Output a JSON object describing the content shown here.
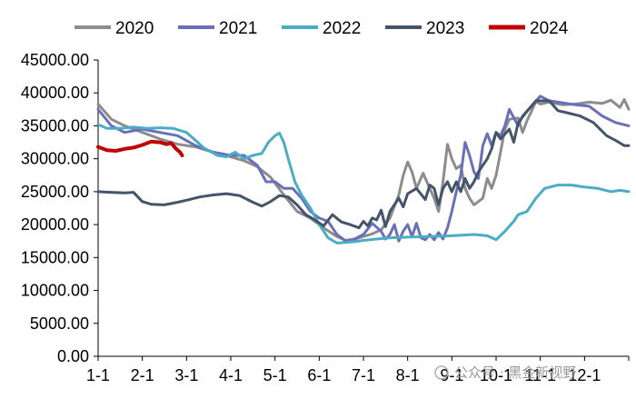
{
  "chart_data": {
    "type": "line",
    "title": "",
    "xlabel": "",
    "ylabel": "",
    "x_tick_labels": [
      "1-1",
      "2-1",
      "3-1",
      "4-1",
      "5-1",
      "6-1",
      "7-1",
      "8-1",
      "9-1",
      "10-1",
      "11-1",
      "12-1"
    ],
    "y_tick_labels": [
      "0.00",
      "5000.00",
      "10000.00",
      "15000.00",
      "20000.00",
      "25000.00",
      "30000.00",
      "35000.00",
      "40000.00",
      "45000.00"
    ],
    "ylim": [
      0,
      45000
    ],
    "xlim": [
      1,
      13
    ],
    "grid": false,
    "legend_position": "top",
    "series": [
      {
        "name": "2020",
        "color": "#8c8c8c",
        "width": 3,
        "points": [
          [
            1.0,
            38300
          ],
          [
            1.3,
            36000
          ],
          [
            1.6,
            35000
          ],
          [
            2.0,
            34000
          ],
          [
            2.4,
            33000
          ],
          [
            2.8,
            32200
          ],
          [
            3.2,
            31800
          ],
          [
            3.6,
            31000
          ],
          [
            4.0,
            30300
          ],
          [
            4.3,
            29700
          ],
          [
            4.6,
            28800
          ],
          [
            4.9,
            27200
          ],
          [
            5.2,
            24500
          ],
          [
            5.5,
            22000
          ],
          [
            5.8,
            21000
          ],
          [
            6.1,
            19500
          ],
          [
            6.4,
            18200
          ],
          [
            6.6,
            17600
          ],
          [
            6.8,
            17800
          ],
          [
            7.0,
            18200
          ],
          [
            7.2,
            18600
          ],
          [
            7.4,
            19200
          ],
          [
            7.6,
            21000
          ],
          [
            7.8,
            24500
          ],
          [
            7.9,
            27500
          ],
          [
            8.0,
            29500
          ],
          [
            8.1,
            28000
          ],
          [
            8.2,
            25500
          ],
          [
            8.35,
            27800
          ],
          [
            8.5,
            25500
          ],
          [
            8.6,
            24000
          ],
          [
            8.7,
            22000
          ],
          [
            8.8,
            26500
          ],
          [
            8.9,
            32200
          ],
          [
            9.0,
            30000
          ],
          [
            9.1,
            28500
          ],
          [
            9.2,
            29000
          ],
          [
            9.3,
            25500
          ],
          [
            9.4,
            24000
          ],
          [
            9.5,
            23000
          ],
          [
            9.7,
            24000
          ],
          [
            9.8,
            27000
          ],
          [
            9.9,
            25500
          ],
          [
            10.0,
            27500
          ],
          [
            10.1,
            31000
          ],
          [
            10.2,
            34500
          ],
          [
            10.3,
            36000
          ],
          [
            10.5,
            36200
          ],
          [
            10.6,
            34000
          ],
          [
            10.7,
            35800
          ],
          [
            10.8,
            37200
          ],
          [
            10.9,
            38700
          ],
          [
            11.0,
            38300
          ],
          [
            11.2,
            38600
          ],
          [
            11.5,
            38200
          ],
          [
            11.8,
            38300
          ],
          [
            12.1,
            38600
          ],
          [
            12.4,
            38400
          ],
          [
            12.6,
            38900
          ],
          [
            12.8,
            37800
          ],
          [
            12.9,
            39000
          ],
          [
            13.0,
            37500
          ]
        ]
      },
      {
        "name": "2021",
        "color": "#6a70b8",
        "width": 3,
        "points": [
          [
            1.0,
            37500
          ],
          [
            1.3,
            35000
          ],
          [
            1.6,
            34000
          ],
          [
            2.0,
            34500
          ],
          [
            2.4,
            34000
          ],
          [
            2.8,
            33500
          ],
          [
            3.2,
            32000
          ],
          [
            3.6,
            31000
          ],
          [
            4.0,
            30500
          ],
          [
            4.3,
            30500
          ],
          [
            4.6,
            29000
          ],
          [
            4.8,
            26500
          ],
          [
            5.0,
            26500
          ],
          [
            5.2,
            25500
          ],
          [
            5.4,
            25500
          ],
          [
            5.6,
            24000
          ],
          [
            5.8,
            22000
          ],
          [
            6.0,
            21000
          ],
          [
            6.2,
            20500
          ],
          [
            6.4,
            18500
          ],
          [
            6.6,
            17500
          ],
          [
            6.8,
            17800
          ],
          [
            7.0,
            18500
          ],
          [
            7.2,
            20200
          ],
          [
            7.4,
            19000
          ],
          [
            7.5,
            17800
          ],
          [
            7.6,
            18500
          ],
          [
            7.7,
            20000
          ],
          [
            7.8,
            17500
          ],
          [
            7.9,
            19000
          ],
          [
            8.0,
            20000
          ],
          [
            8.1,
            18200
          ],
          [
            8.2,
            20200
          ],
          [
            8.3,
            18000
          ],
          [
            8.4,
            17700
          ],
          [
            8.5,
            18500
          ],
          [
            8.6,
            17700
          ],
          [
            8.7,
            18800
          ],
          [
            8.8,
            17800
          ],
          [
            8.9,
            19500
          ],
          [
            9.0,
            22000
          ],
          [
            9.1,
            25000
          ],
          [
            9.2,
            27500
          ],
          [
            9.3,
            32500
          ],
          [
            9.4,
            30500
          ],
          [
            9.5,
            28000
          ],
          [
            9.6,
            27000
          ],
          [
            9.7,
            32000
          ],
          [
            9.8,
            33800
          ],
          [
            9.9,
            32000
          ],
          [
            10.0,
            34000
          ],
          [
            10.1,
            33500
          ],
          [
            10.2,
            35000
          ],
          [
            10.3,
            37500
          ],
          [
            10.5,
            35000
          ],
          [
            10.6,
            36500
          ],
          [
            10.8,
            38000
          ],
          [
            11.0,
            39500
          ],
          [
            11.2,
            38800
          ],
          [
            11.5,
            38500
          ],
          [
            11.8,
            38200
          ],
          [
            12.1,
            38000
          ],
          [
            12.4,
            36500
          ],
          [
            12.7,
            35500
          ],
          [
            13.0,
            35000
          ]
        ]
      },
      {
        "name": "2022",
        "color": "#4bacc6",
        "width": 3,
        "points": [
          [
            1.0,
            35200
          ],
          [
            1.2,
            34600
          ],
          [
            1.5,
            34600
          ],
          [
            1.8,
            34800
          ],
          [
            2.1,
            34600
          ],
          [
            2.4,
            34700
          ],
          [
            2.7,
            34600
          ],
          [
            3.0,
            34000
          ],
          [
            3.2,
            32800
          ],
          [
            3.4,
            31600
          ],
          [
            3.7,
            30500
          ],
          [
            3.9,
            30300
          ],
          [
            4.1,
            31000
          ],
          [
            4.3,
            30000
          ],
          [
            4.5,
            30500
          ],
          [
            4.7,
            30800
          ],
          [
            4.85,
            32500
          ],
          [
            5.0,
            33500
          ],
          [
            5.1,
            33900
          ],
          [
            5.2,
            32500
          ],
          [
            5.3,
            30000
          ],
          [
            5.45,
            26500
          ],
          [
            5.6,
            24500
          ],
          [
            5.8,
            22500
          ],
          [
            6.0,
            20000
          ],
          [
            6.2,
            18000
          ],
          [
            6.4,
            17200
          ],
          [
            6.6,
            17300
          ],
          [
            6.8,
            17400
          ],
          [
            7.0,
            17600
          ],
          [
            7.3,
            17800
          ],
          [
            7.6,
            18000
          ],
          [
            8.0,
            18100
          ],
          [
            8.5,
            18200
          ],
          [
            9.0,
            18300
          ],
          [
            9.5,
            18500
          ],
          [
            9.8,
            18300
          ],
          [
            10.0,
            17700
          ],
          [
            10.2,
            19000
          ],
          [
            10.4,
            20500
          ],
          [
            10.5,
            21500
          ],
          [
            10.7,
            22000
          ],
          [
            10.9,
            24000
          ],
          [
            11.1,
            25500
          ],
          [
            11.4,
            26000
          ],
          [
            11.7,
            26000
          ],
          [
            12.0,
            25700
          ],
          [
            12.3,
            25500
          ],
          [
            12.6,
            25000
          ],
          [
            12.8,
            25200
          ],
          [
            13.0,
            25000
          ]
        ]
      },
      {
        "name": "2023",
        "color": "#44546a",
        "width": 3,
        "points": [
          [
            1.0,
            25000
          ],
          [
            1.3,
            24900
          ],
          [
            1.6,
            24800
          ],
          [
            1.8,
            24900
          ],
          [
            2.0,
            23500
          ],
          [
            2.2,
            23100
          ],
          [
            2.5,
            23000
          ],
          [
            2.8,
            23400
          ],
          [
            3.0,
            23700
          ],
          [
            3.3,
            24200
          ],
          [
            3.6,
            24500
          ],
          [
            3.9,
            24700
          ],
          [
            4.2,
            24400
          ],
          [
            4.5,
            23400
          ],
          [
            4.7,
            22800
          ],
          [
            4.9,
            23500
          ],
          [
            5.1,
            24400
          ],
          [
            5.3,
            24200
          ],
          [
            5.5,
            23000
          ],
          [
            5.7,
            21500
          ],
          [
            5.9,
            20700
          ],
          [
            6.1,
            19800
          ],
          [
            6.3,
            21500
          ],
          [
            6.5,
            20400
          ],
          [
            6.7,
            20000
          ],
          [
            6.9,
            19500
          ],
          [
            7.0,
            20500
          ],
          [
            7.1,
            19800
          ],
          [
            7.2,
            21000
          ],
          [
            7.3,
            20700
          ],
          [
            7.4,
            22200
          ],
          [
            7.5,
            19700
          ],
          [
            7.6,
            22000
          ],
          [
            7.8,
            24000
          ],
          [
            7.9,
            22700
          ],
          [
            8.0,
            24700
          ],
          [
            8.2,
            25500
          ],
          [
            8.4,
            23800
          ],
          [
            8.5,
            26000
          ],
          [
            8.6,
            25500
          ],
          [
            8.7,
            23000
          ],
          [
            8.8,
            25500
          ],
          [
            8.9,
            26500
          ],
          [
            9.0,
            25000
          ],
          [
            9.1,
            26500
          ],
          [
            9.2,
            25000
          ],
          [
            9.3,
            27000
          ],
          [
            9.4,
            25500
          ],
          [
            9.5,
            26500
          ],
          [
            9.6,
            28000
          ],
          [
            9.8,
            30000
          ],
          [
            9.9,
            31500
          ],
          [
            10.0,
            34000
          ],
          [
            10.1,
            33000
          ],
          [
            10.3,
            34500
          ],
          [
            10.4,
            32500
          ],
          [
            10.5,
            35500
          ],
          [
            10.7,
            37200
          ],
          [
            10.9,
            38800
          ],
          [
            11.2,
            38800
          ],
          [
            11.4,
            37300
          ],
          [
            11.6,
            37000
          ],
          [
            11.9,
            36500
          ],
          [
            12.2,
            35500
          ],
          [
            12.5,
            33500
          ],
          [
            12.7,
            32800
          ],
          [
            12.9,
            32000
          ],
          [
            13.0,
            32000
          ]
        ]
      },
      {
        "name": "2024",
        "color": "#c00000",
        "width": 4,
        "points": [
          [
            1.0,
            31800
          ],
          [
            1.2,
            31300
          ],
          [
            1.4,
            31200
          ],
          [
            1.6,
            31500
          ],
          [
            1.8,
            31700
          ],
          [
            2.0,
            32100
          ],
          [
            2.2,
            32600
          ],
          [
            2.4,
            32500
          ],
          [
            2.55,
            32200
          ],
          [
            2.65,
            32400
          ],
          [
            2.75,
            31600
          ],
          [
            2.85,
            31000
          ],
          [
            2.9,
            30500
          ]
        ]
      }
    ]
  },
  "watermark": "公众号 · 黑金新视野"
}
